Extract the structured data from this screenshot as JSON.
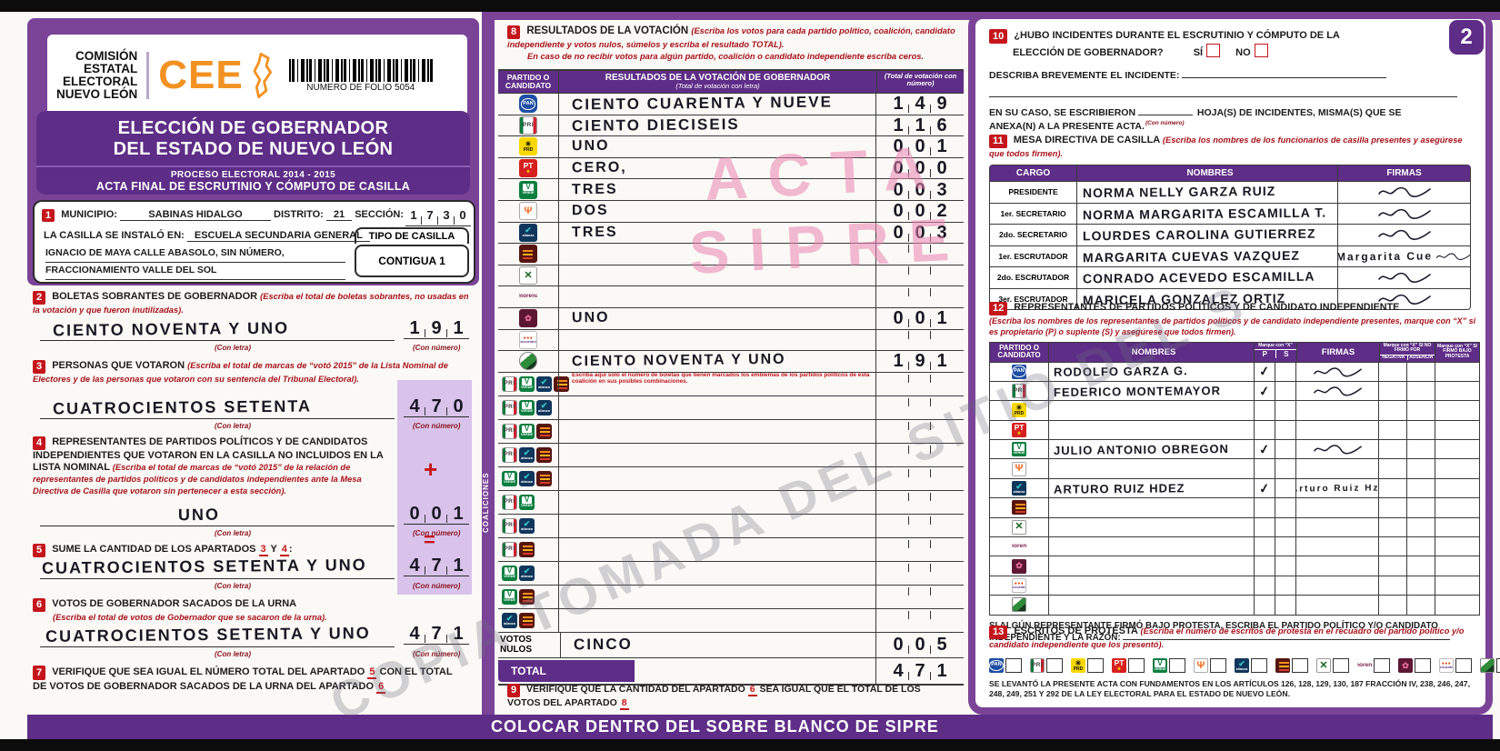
{
  "watermarks": {
    "pink_line1": "ACTA",
    "pink_line2": "SIPRE",
    "gray": "COPIA TOMADA DEL SITIO DEL S"
  },
  "page_badge": "2",
  "footer_band": "COLOCAR DENTRO DEL SOBRE BLANCO DE SIPRE",
  "header": {
    "org_lines": [
      "COMISIÓN",
      "ESTATAL",
      "ELECTORAL",
      "NUEVO LEÓN"
    ],
    "cee": "CEE",
    "folio": "NUMERO DE FOLIO 5054",
    "title_line1": "ELECCIÓN DE GOBERNADOR",
    "title_line2": "DEL ESTADO DE NUEVO LEÓN",
    "process": "PROCESO ELECTORAL  2014 - 2015",
    "acta": "ACTA FINAL DE ESCRUTINIO Y CÓMPUTO DE CASILLA"
  },
  "section1": {
    "num": "1",
    "municipio_label": "MUNICIPIO:",
    "municipio": "SABINAS HIDALGO",
    "distrito_label": "DISTRITO:",
    "distrito": "21",
    "seccion_label": "SECCIÓN:",
    "seccion_digits": [
      "1",
      "7",
      "3",
      "0"
    ],
    "casilla_label": "LA CASILLA SE INSTALÓ EN:",
    "casilla": "ESCUELA SECUNDARIA GENERAL",
    "address1": "IGNACIO DE MAYA CALLE ABASOLO, SIN NÚMERO,",
    "address2": "FRACCIONAMIENTO VALLE DEL SOL",
    "tipo_label": "TIPO DE CASILLA",
    "tipo": "CONTIGUA 1"
  },
  "section2": {
    "num": "2",
    "title": "BOLETAS SOBRANTES DE GOBERNADOR",
    "note": "(Escriba el total de boletas sobrantes, no usadas en la votación y que fueron inutilizadas).",
    "letra": "CIENTO NOVENTA Y UNO",
    "digits": [
      "1",
      "9",
      "1"
    ],
    "con_letra": "(Con letra)",
    "con_numero": "(Con número)"
  },
  "section3": {
    "num": "3",
    "title": "PERSONAS QUE VOTARON",
    "note": "(Escriba el total de marcas de “votó 2015” de la Lista Nominal de Electores y de las personas que votaron con su sentencia del Tribunal Electoral).",
    "letra": "CUATROCIENTOS SETENTA",
    "digits": [
      "4",
      "7",
      "0"
    ],
    "con_letra": "(Con letra)",
    "con_numero": "(Con número)"
  },
  "section4": {
    "num": "4",
    "title": "REPRESENTANTES DE PARTIDOS POLÍTICOS Y DE CANDIDATOS INDEPENDIENTES QUE VOTARON EN LA CASILLA NO INCLUIDOS EN LA LISTA NOMINAL",
    "note": "(Escriba el total de marcas de “votó 2015” de la relación de representantes de partidos políticos y de candidatos independientes ante la Mesa Directiva de Casilla que votaron sin pertenecer a esta sección).",
    "operator": "+",
    "letra": "UNO",
    "digits": [
      "0",
      "0",
      "1"
    ],
    "con_letra": "(Con letra)",
    "con_numero": "(Con número)"
  },
  "section5": {
    "num": "5",
    "title_pre": "SUME LA CANTIDAD DE LOS APARTADOS",
    "ref1": "3",
    "mid": "Y",
    "ref2": "4",
    "colon": ":",
    "operator": "=",
    "letra": "CUATROCIENTOS SETENTA Y UNO",
    "digits": [
      "4",
      "7",
      "1"
    ],
    "con_letra": "(Con letra)",
    "con_numero": "(Con número)"
  },
  "section6": {
    "num": "6",
    "title": "VOTOS DE GOBERNADOR SACADOS DE LA URNA",
    "note": "(Escriba el total de votos de Gobernador que se sacaron de la urna).",
    "letra": "CUATROCIENTOS SETENTA Y UNO",
    "digits": [
      "4",
      "7",
      "1"
    ],
    "con_letra": "(Con letra)",
    "con_numero": "(Con número)"
  },
  "section7": {
    "num": "7",
    "pre": "VERIFIQUE QUE SEA IGUAL EL NÚMERO TOTAL DEL APARTADO",
    "ref1": "5",
    "mid": "CON EL TOTAL DE VOTOS DE GOBERNADOR SACADOS DE LA URNA DEL APARTADO",
    "ref2": "6"
  },
  "section8": {
    "num": "8",
    "title": "RESULTADOS DE LA VOTACIÓN",
    "note1": "(Escriba los votos para cada partido político, coalición, candidato independiente y votos nulos, súmelos y escriba el resultado TOTAL).",
    "note2": "En caso de no recibir votos para algún partido, coalición o candidato independiente escriba ceros.",
    "col_partido": "PARTIDO O CANDIDATO",
    "col_resultados": "RESULTADOS DE LA VOTACIÓN DE GOBERNADOR",
    "col_resultados_sub": "(Total de votación con letra)",
    "col_numero": "(Total de votación con número)",
    "rows": [
      {
        "icon": "pan",
        "letra": "CIENTO CUARENTA Y NUEVE",
        "digits": [
          "1",
          "4",
          "9"
        ]
      },
      {
        "icon": "pri",
        "letra": "CIENTO DIECISEIS",
        "digits": [
          "1",
          "1",
          "6"
        ]
      },
      {
        "icon": "prd",
        "letra": "UNO",
        "digits": [
          "0",
          "0",
          "1"
        ]
      },
      {
        "icon": "pt",
        "letra": "CERO,",
        "digits": [
          "0",
          "0",
          "0"
        ]
      },
      {
        "icon": "verde",
        "letra": "TRES",
        "digits": [
          "0",
          "0",
          "3"
        ]
      },
      {
        "icon": "mc",
        "letra": "DOS",
        "digits": [
          "0",
          "0",
          "2"
        ]
      },
      {
        "icon": "alianza",
        "letra": "TRES",
        "digits": [
          "0",
          "0",
          "3"
        ]
      },
      {
        "icon": "pd",
        "letra": "",
        "digits": [
          "",
          "",
          ""
        ]
      },
      {
        "icon": "cruzada",
        "letra": "",
        "digits": [
          "",
          "",
          ""
        ]
      },
      {
        "icon": "morena",
        "letra": "",
        "digits": [
          "",
          "",
          ""
        ]
      },
      {
        "icon": "humanista",
        "letra": "UNO",
        "digits": [
          "0",
          "0",
          "1"
        ]
      },
      {
        "icon": "es",
        "letra": "",
        "digits": [
          "",
          "",
          ""
        ]
      },
      {
        "icon": "indep",
        "letra": "CIENTO NOVENTA Y UNO",
        "digits": [
          "1",
          "9",
          "1"
        ]
      }
    ],
    "coaliciones_label": "COALICIONES",
    "coalicion_note": "Escriba aquí solo el número de boletas que tienen marcados los emblemas de los partidos políticos de esta coalición en sus posibles combinaciones.",
    "coaliciones": [
      [
        "pri",
        "verde",
        "alianza",
        "pd"
      ],
      [
        "pri",
        "verde",
        "alianza"
      ],
      [
        "pri",
        "verde",
        "pd"
      ],
      [
        "pri",
        "alianza",
        "pd"
      ],
      [
        "verde",
        "alianza",
        "pd"
      ],
      [
        "pri",
        "verde"
      ],
      [
        "pri",
        "alianza"
      ],
      [
        "pri",
        "pd"
      ],
      [
        "verde",
        "alianza"
      ],
      [
        "verde",
        "pd"
      ],
      [
        "alianza",
        "pd"
      ]
    ],
    "nulos_label": "VOTOS NULOS",
    "nulos_letra": "CINCO",
    "nulos_digits": [
      "0",
      "0",
      "5"
    ],
    "total_label": "TOTAL",
    "total_digits": [
      "4",
      "7",
      "1"
    ]
  },
  "section9": {
    "num": "9",
    "pre": "VERIFIQUE QUE LA CANTIDAD DEL APARTADO",
    "ref1": "6",
    "mid": "SEA IGUAL QUE EL TOTAL DE LOS VOTOS DEL APARTADO",
    "ref2": "8"
  },
  "section10": {
    "num": "10",
    "title1": "¿HUBO INCIDENTES DURANTE EL ESCRUTINIO Y CÓMPUTO DE LA",
    "title2": "ELECCIÓN DE GOBERNADOR?",
    "si": "SÍ",
    "no": "NO",
    "describe": "DESCRIBA BREVEMENTE EL INCIDENTE:",
    "caso_pre": "EN SU CASO, SE ESCRIBIERON",
    "caso_blank_caption": "(Con número)",
    "caso_post": "HOJA(S) DE INCIDENTES, MISMA(S) QUE SE",
    "caso_post2": "ANEXA(N) A LA PRESENTE ACTA."
  },
  "section11": {
    "num": "11",
    "title": "MESA DIRECTIVA DE CASILLA",
    "note": "(Escriba los nombres de los funcionarios de casilla presentes y asegúrese que todos firmen).",
    "col_cargo": "CARGO",
    "col_nombres": "NOMBRES",
    "col_firmas": "FIRMAS",
    "rows": [
      {
        "cargo": "PRESIDENTE",
        "nombre": "NORMA NELLY GARZA RUIZ"
      },
      {
        "cargo": "1er. SECRETARIO",
        "nombre": "NORMA MARGARITA ESCAMILLA T."
      },
      {
        "cargo": "2do. SECRETARIO",
        "nombre": "LOURDES CAROLINA GUTIERREZ"
      },
      {
        "cargo": "1er. ESCRUTADOR",
        "nombre": "MARGARITA CUEVAS VAZQUEZ",
        "firma_text": "Margarita Cue"
      },
      {
        "cargo": "2do. ESCRUTADOR",
        "nombre": "CONRADO ACEVEDO ESCAMILLA"
      },
      {
        "cargo": "3er. ESCRUTADOR",
        "nombre": "MARICELA GONZALEZ ORTIZ"
      }
    ]
  },
  "section12": {
    "num": "12",
    "title": "REPRESENTANTES DE PARTIDOS POLÍTICOS Y DE CANDIDATO INDEPENDIENTE",
    "note": "(Escriba los nombres de los representantes de partidos políticos y de candidato independiente presentes, marque con “X” si es propietario (P) o suplente (S) y asegúrese que todos firmen).",
    "col_partido": "PARTIDO O CANDIDATO",
    "col_nombres": "NOMBRES",
    "col_marque": "Marque con “X”",
    "col_p": "P",
    "col_s": "S",
    "col_firmas": "FIRMAS",
    "col_nofirmo": "Marque con “X” SI NO FIRMÓ POR",
    "col_negativa": "NEGATIVA",
    "col_ausencia": "AUSENCIA",
    "col_protesta": "Marque con “X” SI FIRMÓ BAJO PROTESTA",
    "rows": [
      {
        "icon": "pan",
        "nombre": "RODOLFO GARZA G.",
        "p": true,
        "firma": true
      },
      {
        "icon": "pri",
        "nombre": "FEDERICO MONTEMAYOR",
        "p": true,
        "firma": true
      },
      {
        "icon": "prd",
        "nombre": "",
        "p": false,
        "firma": false
      },
      {
        "icon": "pt",
        "nombre": "",
        "p": false,
        "firma": false
      },
      {
        "icon": "verde",
        "nombre": "JULIO ANTONIO OBREGON",
        "p": true,
        "firma": true
      },
      {
        "icon": "mc",
        "nombre": "",
        "p": false,
        "firma": false
      },
      {
        "icon": "alianza",
        "nombre": "ARTURO RUIZ HDEZ",
        "p": true,
        "firma": true,
        "firma_text": "Arturo Ruiz Hz."
      },
      {
        "icon": "pd",
        "nombre": "",
        "p": false,
        "firma": false
      },
      {
        "icon": "cruzada",
        "nombre": "",
        "p": false,
        "firma": false
      },
      {
        "icon": "morena",
        "nombre": "",
        "p": false,
        "firma": false
      },
      {
        "icon": "humanista",
        "nombre": "",
        "p": false,
        "firma": false
      },
      {
        "icon": "es",
        "nombre": "",
        "p": false,
        "firma": false
      },
      {
        "icon": "indep",
        "nombre": "",
        "p": false,
        "firma": false
      }
    ],
    "protesta_text": "SI ALGÚN REPRESENTANTE FIRMÓ BAJO PROTESTA, ESCRIBA EL PARTIDO POLÍTICO Y/O CANDIDATO",
    "protesta_text2": "INDEPENDIENTE Y LA RAZÓN:"
  },
  "section13": {
    "num": "13",
    "title": "ESCRITOS DE PROTESTA",
    "note": "(Escriba el número de escritos de protesta en el recuadro del partido político y/o candidato independiente que los presentó).",
    "logos": [
      "pan",
      "pri",
      "prd",
      "pt",
      "verde",
      "mc",
      "alianza",
      "pd",
      "cruzada",
      "morena",
      "humanista",
      "es",
      "indep"
    ]
  },
  "legal": "SE LEVANTÓ LA PRESENTE ACTA CON FUNDAMENTOS EN LOS ARTÍCULOS 126, 128, 129, 130, 187 FRACCIÓN IV, 238, 246, 247, 248, 249, 251 Y 292 DE LA LEY ELECTORAL PARA EL ESTADO DE NUEVO LEÓN.",
  "party_glyphs": {
    "pan": {
      "main": "PAN",
      "sub": ""
    },
    "pri": {
      "main": "PRI",
      "sub": ""
    },
    "prd": {
      "main": "☀",
      "sub": "PRD"
    },
    "pt": {
      "main": "PT",
      "sub": "★"
    },
    "verde": {
      "main": "V",
      "sub": "VERDE"
    },
    "mc": {
      "main": "Ψ",
      "sub": ""
    },
    "alianza": {
      "main": "✔",
      "sub": "alianza"
    },
    "pd": {
      "main": "",
      "sub": ""
    },
    "cruzada": {
      "main": "✕",
      "sub": ""
    },
    "morena": {
      "main": "morena",
      "sub": ""
    },
    "humanista": {
      "main": "✿",
      "sub": ""
    },
    "es": {
      "main": "●●●",
      "sub": "encuentro"
    },
    "indep": {
      "main": "",
      "sub": ""
    }
  },
  "colors": {
    "purple": "#7a4398",
    "purple_dark": "#5e2d87",
    "red": "#c4161c",
    "lavender": "#d9c3ea",
    "orange": "#f29222"
  }
}
